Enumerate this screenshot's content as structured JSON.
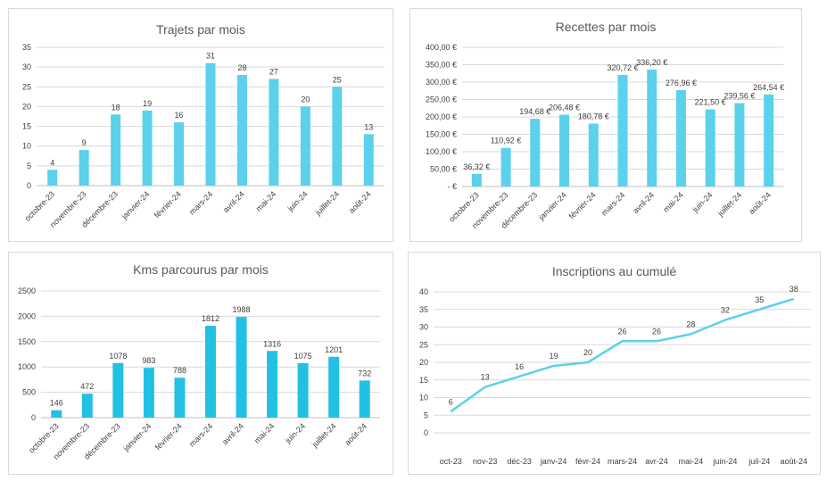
{
  "colors": {
    "bar": "#5bd1ec",
    "bar_dark": "#22c1e4",
    "line": "#5bd1ec",
    "grid": "#d9d9d9"
  },
  "chart_data": [
    {
      "type": "bar",
      "title": "Trajets par mois",
      "categories": [
        "octobre-23",
        "novembre-23",
        "décembre-23",
        "janvier-24",
        "février-24",
        "mars-24",
        "avril-24",
        "mai-24",
        "juin-24",
        "juillet-24",
        "août-24"
      ],
      "values": [
        4,
        9,
        18,
        19,
        16,
        31,
        28,
        27,
        20,
        25,
        13
      ],
      "value_labels": [
        "4",
        "9",
        "18",
        "19",
        "16",
        "31",
        "28",
        "27",
        "20",
        "25",
        "13"
      ],
      "ylim": [
        0,
        35
      ],
      "yticks": [
        "0",
        "5",
        "10",
        "15",
        "20",
        "25",
        "30",
        "35"
      ],
      "grid": true
    },
    {
      "type": "bar",
      "title": "Recettes par mois",
      "categories": [
        "octobre-23",
        "novembre-23",
        "décembre-23",
        "janvier-24",
        "février-24",
        "mars-24",
        "avril-24",
        "mai-24",
        "juin-24",
        "juillet-24",
        "août-24"
      ],
      "values": [
        36.32,
        110.92,
        194.68,
        206.48,
        180.78,
        320.72,
        336.2,
        276.96,
        221.5,
        239.56,
        264.54
      ],
      "value_labels": [
        "36,32 €",
        "110,92 €",
        "194,68 €",
        "206,48 €",
        "180,78 €",
        "320,72 €",
        "336,20 €",
        "276,96 €",
        "221,50 €",
        "239,56 €",
        "264,54 €"
      ],
      "ylim": [
        0,
        400
      ],
      "yticks": [
        "-  €",
        "50,00 €",
        "100,00 €",
        "150,00 €",
        "200,00 €",
        "250,00 €",
        "300,00 €",
        "350,00 €",
        "400,00 €"
      ],
      "grid": true
    },
    {
      "type": "bar",
      "title": "Kms parcourus par mois",
      "categories": [
        "octobre-23",
        "novembre-23",
        "décembre-23",
        "janvier-24",
        "février-24",
        "mars-24",
        "avril-24",
        "mai-24",
        "juin-24",
        "juillet-24",
        "août-24"
      ],
      "values": [
        146,
        472,
        1078,
        983,
        788,
        1812,
        1988,
        1316,
        1075,
        1201,
        732
      ],
      "value_labels": [
        "146",
        "472",
        "1078",
        "983",
        "788",
        "1812",
        "1988",
        "1316",
        "1075",
        "1201",
        "732"
      ],
      "ylim": [
        0,
        2500
      ],
      "yticks": [
        "0",
        "500",
        "1000",
        "1500",
        "2000",
        "2500"
      ],
      "grid": true
    },
    {
      "type": "line",
      "title": "Inscriptions au cumulé",
      "categories": [
        "oct-23",
        "nov-23",
        "déc-23",
        "janv-24",
        "févr-24",
        "mars-24",
        "avr-24",
        "mai-24",
        "juin-24",
        "juil-24",
        "août-24"
      ],
      "values": [
        6,
        13,
        16,
        19,
        20,
        26,
        26,
        28,
        32,
        35,
        38
      ],
      "value_labels": [
        "6",
        "13",
        "16",
        "19",
        "20",
        "26",
        "26",
        "28",
        "32",
        "35",
        "38"
      ],
      "ylim": [
        0,
        40
      ],
      "yticks": [
        "0",
        "5",
        "10",
        "15",
        "20",
        "25",
        "30",
        "35",
        "40"
      ],
      "grid": true
    }
  ]
}
